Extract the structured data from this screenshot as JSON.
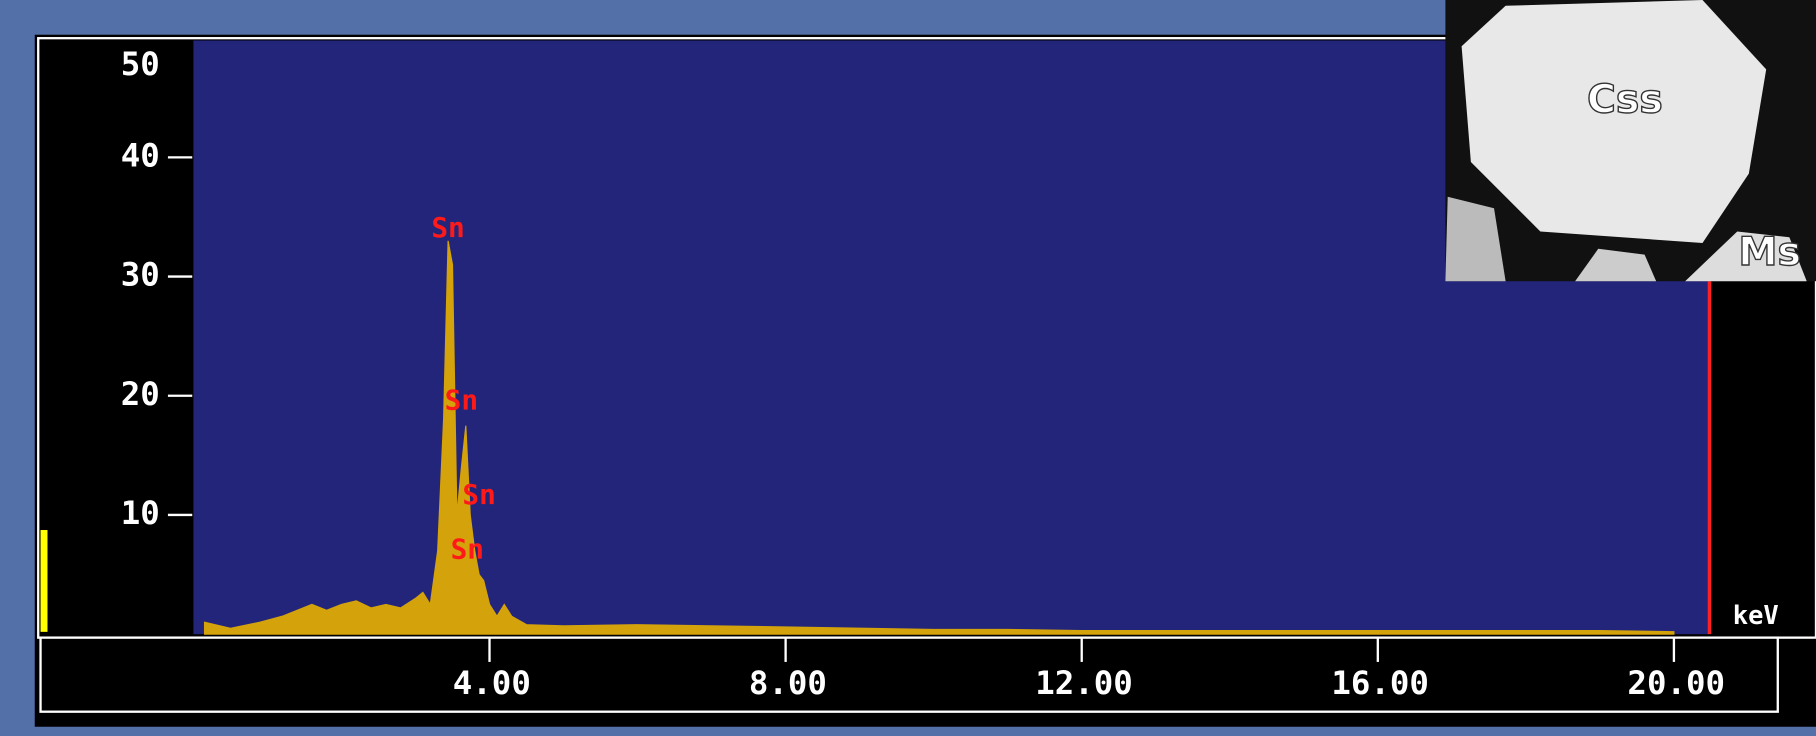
{
  "chart_data": {
    "type": "area",
    "x_unit": "keV",
    "x": [
      0.15,
      0.5,
      0.9,
      1.2,
      1.6,
      1.8,
      2.0,
      2.2,
      2.4,
      2.6,
      2.8,
      3.0,
      3.1,
      3.2,
      3.3,
      3.38,
      3.44,
      3.5,
      3.56,
      3.62,
      3.68,
      3.74,
      3.8,
      3.86,
      3.92,
      4.0,
      4.1,
      4.2,
      4.3,
      4.5,
      5,
      6,
      7,
      8,
      9,
      10,
      11,
      12,
      13,
      14,
      15,
      16,
      17,
      18,
      19,
      20
    ],
    "values": [
      1,
      0.5,
      1,
      1.5,
      2.5,
      2,
      2.5,
      2.8,
      2.2,
      2.5,
      2.2,
      3,
      3.5,
      2.5,
      7,
      18,
      33,
      31,
      10,
      14,
      17.5,
      10,
      7,
      5,
      4.5,
      2.5,
      1.5,
      2.5,
      1.5,
      0.8,
      0.7,
      0.8,
      0.7,
      0.6,
      0.5,
      0.4,
      0.4,
      0.3,
      0.3,
      0.3,
      0.3,
      0.3,
      0.3,
      0.3,
      0.3,
      0.2
    ],
    "color": "#d4a20a",
    "xlim": [
      0,
      20.48
    ],
    "ylim": [
      0,
      50
    ],
    "xticks": [
      {
        "value": 4,
        "label": "4.00"
      },
      {
        "value": 8,
        "label": "8.00"
      },
      {
        "value": 12,
        "label": "12.00"
      },
      {
        "value": 16,
        "label": "16.00"
      },
      {
        "value": 20,
        "label": "20.00"
      }
    ],
    "yticks": [
      10,
      20,
      30,
      40,
      50
    ],
    "annotations": [
      {
        "text": "Sn",
        "x": 3.44,
        "y": 34
      },
      {
        "text": "Sn",
        "x": 3.62,
        "y": 19.5
      },
      {
        "text": "Sn",
        "x": 3.86,
        "y": 11.6
      },
      {
        "text": "Sn",
        "x": 3.7,
        "y": 7
      }
    ],
    "inset_labels": [
      "Css",
      "Ms"
    ]
  }
}
